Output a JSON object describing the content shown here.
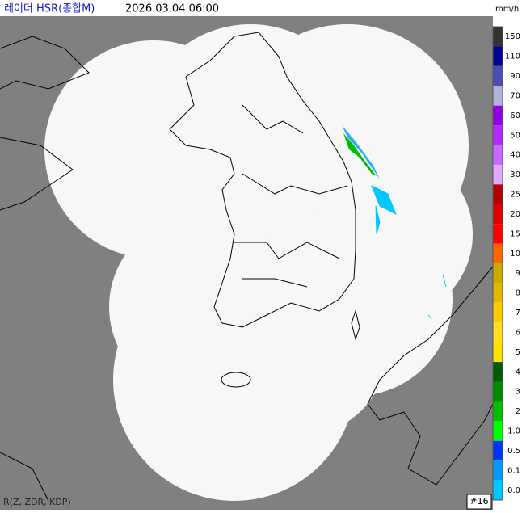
{
  "header": {
    "title": "레이더 HSR(종합M)",
    "time": "2026.03.04.06:00",
    "unit": "mm/h"
  },
  "legend": {
    "items": [
      {
        "label": "150",
        "color": "#333333"
      },
      {
        "label": "110",
        "color": "#000390"
      },
      {
        "label": "90",
        "color": "#4c4eb1"
      },
      {
        "label": "70",
        "color": "#b3b4de"
      },
      {
        "label": "60",
        "color": "#9300e4"
      },
      {
        "label": "50",
        "color": "#b329ff"
      },
      {
        "label": "40",
        "color": "#c969ff"
      },
      {
        "label": "30",
        "color": "#e0a9ff"
      },
      {
        "label": "25",
        "color": "#b40000"
      },
      {
        "label": "20",
        "color": "#e00000"
      },
      {
        "label": "15",
        "color": "#fe0000"
      },
      {
        "label": "10",
        "color": "#ff6600"
      },
      {
        "label": "9",
        "color": "#ccaa00"
      },
      {
        "label": "8",
        "color": "#e0b900"
      },
      {
        "label": "7",
        "color": "#f9cb00"
      },
      {
        "label": "6",
        "color": "#ffdc1f"
      },
      {
        "label": "5",
        "color": "#ffe100"
      },
      {
        "label": "4",
        "color": "#005a00"
      },
      {
        "label": "3",
        "color": "#008c00"
      },
      {
        "label": "2",
        "color": "#00be00"
      },
      {
        "label": "1.0",
        "color": "#00ff00"
      },
      {
        "label": "0.5",
        "color": "#0033f5"
      },
      {
        "label": "0.1",
        "color": "#009bf5"
      },
      {
        "label": "0.0",
        "color": "#00c8ff"
      }
    ]
  },
  "footer": {
    "method": "R(Z, ZDR, KDP)",
    "site_count": "#16"
  }
}
